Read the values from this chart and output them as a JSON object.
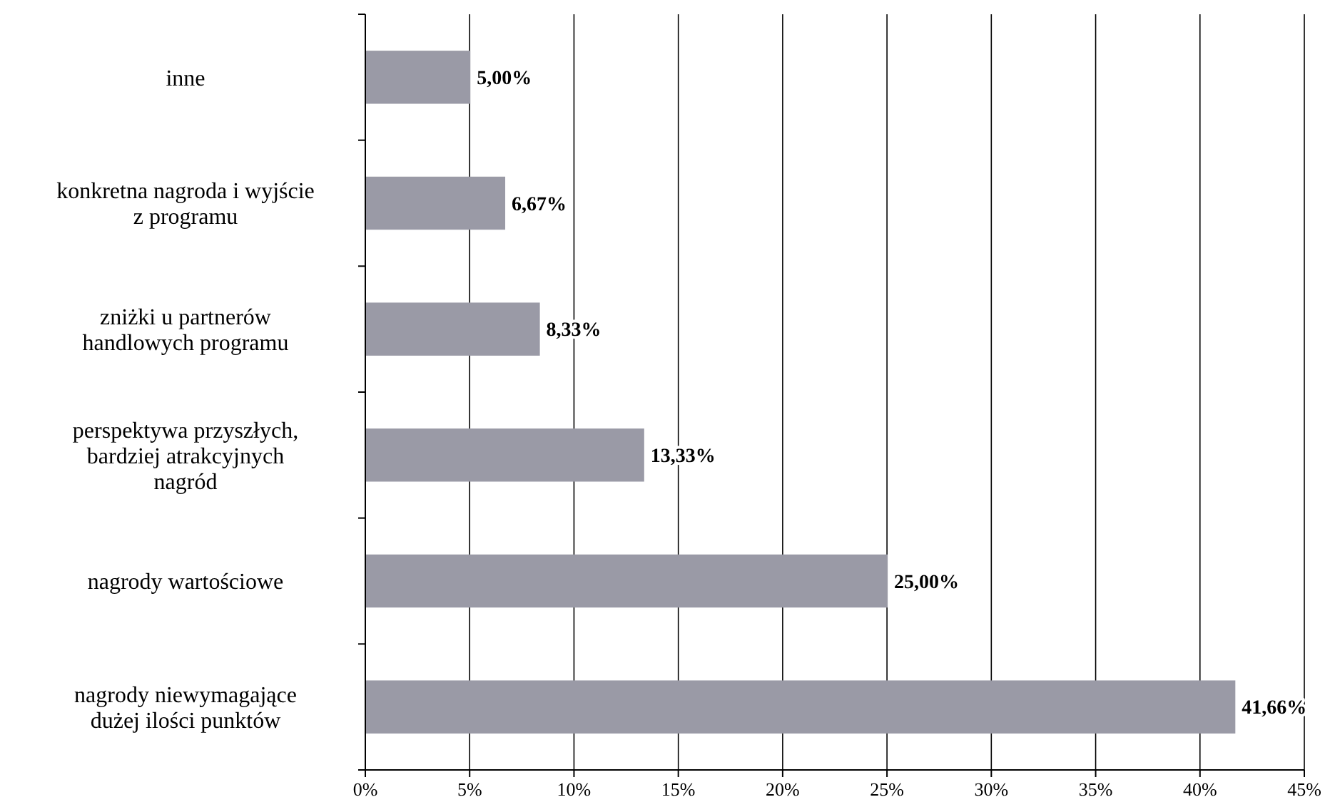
{
  "chart_data": {
    "type": "bar",
    "orientation": "horizontal",
    "categories": [
      "inne",
      "konkretna nagroda i wyjście\nz programu",
      "zniżki u partnerów\nhandlowych programu",
      "perspektywa przyszłych,\nbardziej atrakcyjnych\nnagród",
      "nagrody wartościowe",
      "nagrody niewymagające\ndużej ilości punktów"
    ],
    "values": [
      5,
      6.67,
      8.33,
      13.33,
      25,
      41.66
    ],
    "value_labels": [
      "5,00%",
      "6,67%",
      "8,33%",
      "13,33%",
      "25,00%",
      "41,66%"
    ],
    "color": "#9a9aa6",
    "xlim": [
      0,
      45
    ],
    "xticks": [
      {
        "value": 0,
        "label": "0%"
      },
      {
        "value": 5,
        "label": "5%"
      },
      {
        "value": 10,
        "label": "10%"
      },
      {
        "value": 15,
        "label": "15%"
      },
      {
        "value": 20,
        "label": "20%"
      },
      {
        "value": 25,
        "label": "25%"
      },
      {
        "value": 30,
        "label": "30%"
      },
      {
        "value": 35,
        "label": "35%"
      },
      {
        "value": 40,
        "label": "40%"
      },
      {
        "value": 45,
        "label": "45%"
      }
    ],
    "grid": "x"
  }
}
